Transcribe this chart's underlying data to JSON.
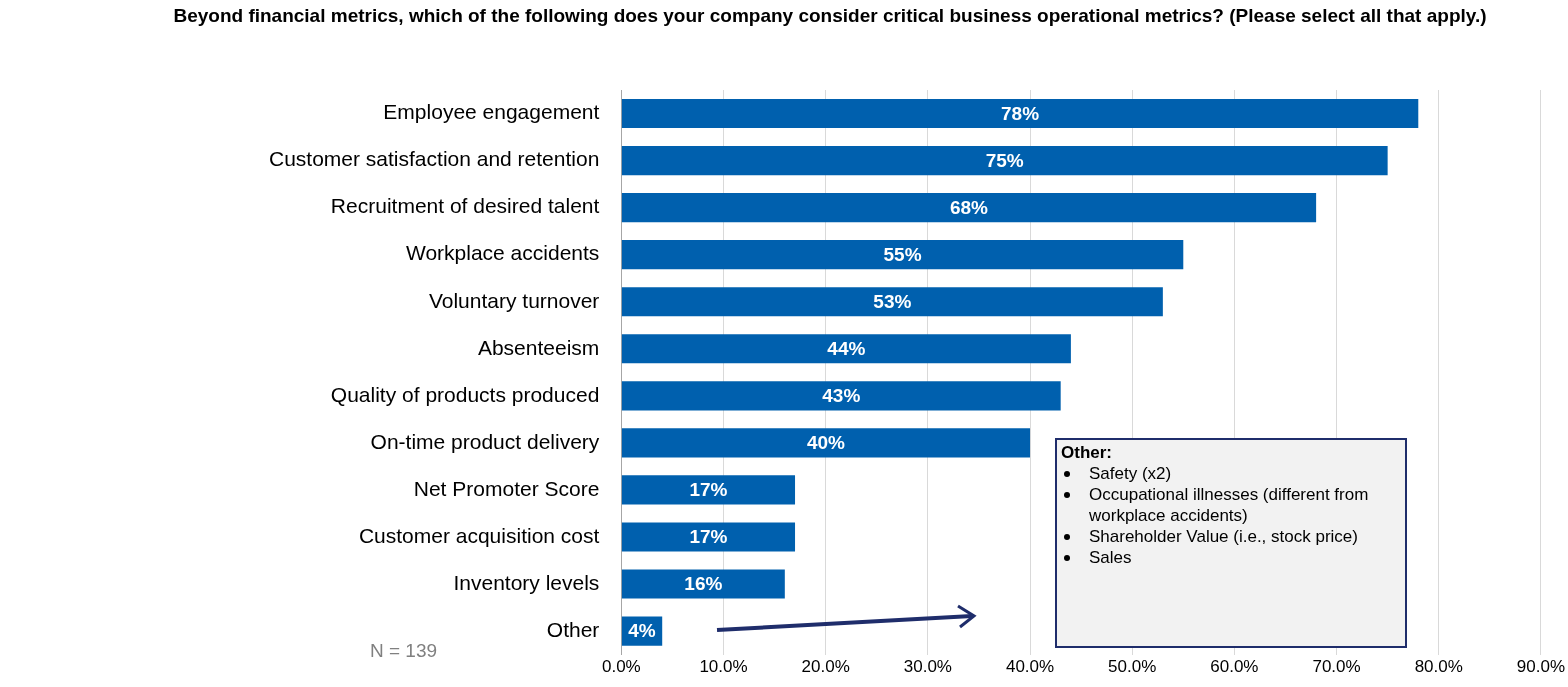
{
  "chart_data": {
    "type": "bar",
    "orientation": "horizontal",
    "title": "Beyond financial metrics, which of the following does your company consider critical business operational metrics? (Please select all that apply.)",
    "categories": [
      "Employee engagement",
      "Customer satisfaction and retention",
      "Recruitment of desired talent",
      "Workplace accidents",
      "Voluntary turnover",
      "Absenteeism",
      "Quality of products produced",
      "On-time product delivery",
      "Net Promoter Score",
      "Customer acquisition cost",
      "Inventory levels",
      "Other"
    ],
    "values": [
      78,
      75,
      68,
      55,
      53,
      44,
      43,
      40,
      17,
      17,
      16,
      4
    ],
    "value_labels": [
      "78%",
      "75%",
      "68%",
      "55%",
      "53%",
      "44%",
      "43%",
      "40%",
      "17%",
      "17%",
      "16%",
      "4%"
    ],
    "color": "#0060ae",
    "xlim": [
      0,
      90
    ],
    "xticks": [
      {
        "value": 0,
        "label": "0.0%"
      },
      {
        "value": 10,
        "label": "10.0%"
      },
      {
        "value": 20,
        "label": "20.0%"
      },
      {
        "value": 30,
        "label": "30.0%"
      },
      {
        "value": 40,
        "label": "40.0%"
      },
      {
        "value": 50,
        "label": "50.0%"
      },
      {
        "value": 60,
        "label": "60.0%"
      },
      {
        "value": 70,
        "label": "70.0%"
      },
      {
        "value": 80,
        "label": "80.0%"
      },
      {
        "value": 90,
        "label": "90.0%"
      }
    ],
    "grid": "x",
    "annotations": [
      "N = 139",
      "Other:",
      "Safety (x2)",
      "Occupational illnesses (different from workplace accidents)",
      "Shareholder Value (i.e., stock price)",
      "Sales"
    ]
  }
}
